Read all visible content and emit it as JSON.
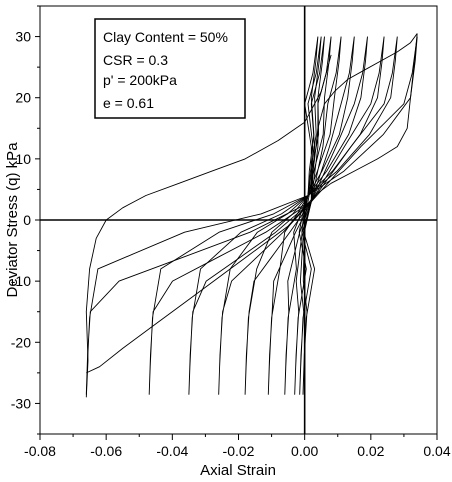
{
  "chart_data": {
    "type": "line",
    "title": "",
    "xlabel": "Axial Strain",
    "ylabel": "Deviator Stress (q) kPa",
    "xlim": [
      -0.08,
      0.04
    ],
    "ylim": [
      -35,
      35
    ],
    "x_ticks": [
      -0.08,
      -0.06,
      -0.04,
      -0.02,
      0.0,
      0.02,
      0.04
    ],
    "x_tick_labels": [
      "-0.08",
      "-0.06",
      "-0.04",
      "-0.02",
      "0.00",
      "0.02",
      "0.04"
    ],
    "y_ticks": [
      -30,
      -20,
      -10,
      0,
      10,
      20,
      30
    ],
    "y_tick_labels": [
      "-30",
      "-20",
      "-10",
      "0",
      "10",
      "20",
      "30"
    ],
    "grid": false,
    "zero_lines": true,
    "legend_position": "top-left",
    "annotations": [
      "Clay Content = 50%",
      "CSR = 0.3",
      "p' = 200kPa",
      "e = 0.61"
    ],
    "line_color": "#000000",
    "series": [
      {
        "x": [
          0.0,
          0.001,
          0.002,
          0.003,
          0.004,
          0.006,
          0.009,
          0.013,
          0.018,
          0.023,
          0.028,
          0.032,
          0.034
        ],
        "y": [
          0,
          3,
          6,
          10,
          15,
          19,
          21,
          23,
          24.5,
          26,
          27.5,
          29,
          30.5
        ]
      },
      {
        "x": [
          0.034,
          0.033,
          0.032,
          0.031,
          0.028,
          0.022,
          0.015,
          0.008,
          0.003,
          0.0,
          -0.005,
          -0.015,
          -0.025,
          -0.035,
          -0.045,
          -0.055,
          -0.062,
          -0.066
        ],
        "y": [
          30.5,
          25,
          20,
          15,
          12,
          10,
          8,
          6,
          4,
          2,
          -1,
          -5,
          -9,
          -13,
          -17,
          -21,
          -24,
          -25
        ]
      },
      {
        "x": [
          -0.066,
          -0.0655,
          -0.066,
          -0.065,
          -0.063,
          -0.06,
          -0.055,
          -0.048,
          -0.038,
          -0.028,
          -0.018,
          -0.008,
          0.0,
          0.005,
          0.008
        ],
        "y": [
          -29,
          -23,
          -15,
          -8,
          -3,
          0,
          2,
          4,
          6,
          8,
          10,
          13,
          16,
          21,
          27
        ]
      }
    ],
    "loops": [
      {
        "xmin": -0.066,
        "xmax": 0.034
      },
      {
        "xmin": -0.047,
        "xmax": 0.028
      },
      {
        "xmin": -0.035,
        "xmax": 0.024
      },
      {
        "xmin": -0.026,
        "xmax": 0.019
      },
      {
        "xmin": -0.018,
        "xmax": 0.015
      },
      {
        "xmin": -0.011,
        "xmax": 0.011
      },
      {
        "xmin": -0.006,
        "xmax": 0.008
      },
      {
        "xmin": -0.003,
        "xmax": 0.006
      },
      {
        "xmin": -0.0015,
        "xmax": 0.005
      },
      {
        "xmin": -0.0005,
        "xmax": 0.004
      }
    ]
  }
}
